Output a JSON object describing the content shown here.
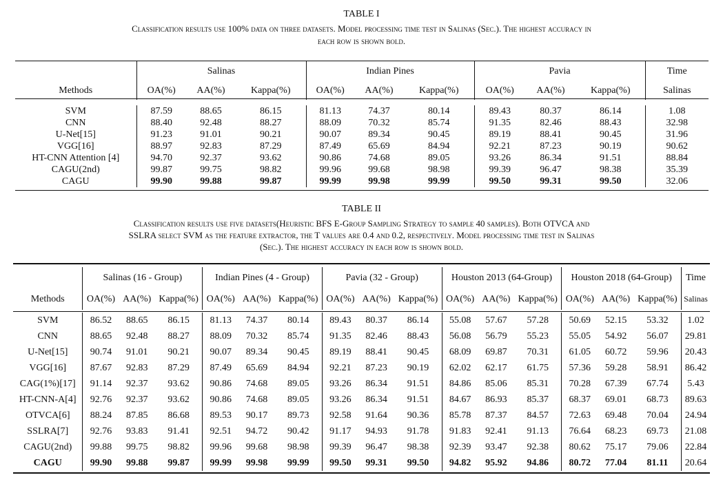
{
  "table1": {
    "name": "TABLE I",
    "caption_lines": [
      "Classification results use 100% data on three datasets. Model processing time test in Salinas (Sec.). The highest accuracy in",
      "each row is shown bold."
    ],
    "groups": [
      "Salinas",
      "Indian Pines",
      "Pavia",
      "Time"
    ],
    "columns": [
      "Methods",
      "OA(%)",
      "AA(%)",
      "Kappa(%)",
      "OA(%)",
      "AA(%)",
      "Kappa(%)",
      "OA(%)",
      "AA(%)",
      "Kappa(%)",
      "Salinas"
    ],
    "rows": [
      [
        "SVM",
        "87.59",
        "88.65",
        "86.15",
        "81.13",
        "74.37",
        "80.14",
        "89.43",
        "80.37",
        "86.14",
        "1.08"
      ],
      [
        "CNN",
        "88.40",
        "92.48",
        "88.27",
        "88.09",
        "70.32",
        "85.74",
        "91.35",
        "82.46",
        "88.43",
        "32.98"
      ],
      [
        "U-Net[15]",
        "91.23",
        "91.01",
        "90.21",
        "90.07",
        "89.34",
        "90.45",
        "89.19",
        "88.41",
        "90.45",
        "31.96"
      ],
      [
        "VGG[16]",
        "88.97",
        "92.83",
        "87.29",
        "87.49",
        "65.69",
        "84.94",
        "92.21",
        "87.23",
        "90.19",
        "90.62"
      ],
      [
        "HT-CNN Attention [4]",
        "94.70",
        "92.37",
        "93.62",
        "90.86",
        "74.68",
        "89.05",
        "93.26",
        "86.34",
        "91.51",
        "88.84"
      ],
      [
        "CAGU(2nd)",
        "99.87",
        "99.75",
        "98.82",
        "99.96",
        "99.68",
        "98.98",
        "99.39",
        "96.47",
        "98.38",
        "35.39"
      ],
      [
        "CAGU",
        "99.90",
        "99.88",
        "99.87",
        "99.99",
        "99.98",
        "99.99",
        "99.50",
        "99.31",
        "99.50",
        "32.06"
      ]
    ]
  },
  "table2": {
    "name": "TABLE II",
    "caption_lines": [
      "Classification results use five datasets(Heuristic BFS E-Group Sampling Strategy to sample 40 samples). Both OTVCA and",
      "SSLRA select SVM as the feature extractor, the T values are 0.4 and 0.2, respectively. Model processing time test in Salinas",
      "(Sec.). The highest accuracy in each row is shown bold."
    ],
    "groups": [
      "Salinas (16 - Group)",
      "Indian Pines (4 - Group)",
      "Pavia (32 - Group)",
      "Houston 2013 (64-Group)",
      "Houston 2018 (64-Group)",
      "Time"
    ],
    "columns": [
      "Methods",
      "OA(%)",
      "AA(%)",
      "Kappa(%)",
      "OA(%)",
      "AA(%)",
      "Kappa(%)",
      "OA(%)",
      "AA(%)",
      "Kappa(%)",
      "OA(%)",
      "AA(%)",
      "Kappa(%)",
      "OA(%)",
      "AA(%)",
      "Kappa(%)",
      "Salinas"
    ],
    "rows": [
      [
        "SVM",
        "86.52",
        "88.65",
        "86.15",
        "81.13",
        "74.37",
        "80.14",
        "89.43",
        "80.37",
        "86.14",
        "55.08",
        "57.67",
        "57.28",
        "50.69",
        "52.15",
        "53.32",
        "1.02"
      ],
      [
        "CNN",
        "88.65",
        "92.48",
        "88.27",
        "88.09",
        "70.32",
        "85.74",
        "91.35",
        "82.46",
        "88.43",
        "56.08",
        "56.79",
        "55.23",
        "55.05",
        "54.92",
        "56.07",
        "29.81"
      ],
      [
        "U-Net[15]",
        "90.74",
        "91.01",
        "90.21",
        "90.07",
        "89.34",
        "90.45",
        "89.19",
        "88.41",
        "90.45",
        "68.09",
        "69.87",
        "70.31",
        "61.05",
        "60.72",
        "59.96",
        "20.43"
      ],
      [
        "VGG[16]",
        "87.67",
        "92.83",
        "87.29",
        "87.49",
        "65.69",
        "84.94",
        "92.21",
        "87.23",
        "90.19",
        "62.02",
        "62.17",
        "61.75",
        "57.36",
        "59.28",
        "58.91",
        "86.42"
      ],
      [
        "CAG(1%)[17]",
        "91.14",
        "92.37",
        "93.62",
        "90.86",
        "74.68",
        "89.05",
        "93.26",
        "86.34",
        "91.51",
        "84.86",
        "85.06",
        "85.31",
        "70.28",
        "67.39",
        "67.74",
        "5.43"
      ],
      [
        "HT-CNN-A[4]",
        "92.76",
        "92.37",
        "93.62",
        "90.86",
        "74.68",
        "89.05",
        "93.26",
        "86.34",
        "91.51",
        "84.67",
        "86.93",
        "85.37",
        "68.37",
        "69.01",
        "68.73",
        "89.63"
      ],
      [
        "OTVCA[6]",
        "88.24",
        "87.85",
        "86.68",
        "89.53",
        "90.17",
        "89.73",
        "92.58",
        "91.64",
        "90.36",
        "85.78",
        "87.37",
        "84.57",
        "72.63",
        "69.48",
        "70.04",
        "24.94"
      ],
      [
        "SSLRA[7]",
        "92.76",
        "93.83",
        "91.41",
        "92.51",
        "94.72",
        "90.42",
        "91.17",
        "94.93",
        "91.78",
        "91.83",
        "92.41",
        "91.13",
        "76.64",
        "68.23",
        "69.73",
        "21.08"
      ],
      [
        "CAGU(2nd)",
        "99.88",
        "99.75",
        "98.82",
        "99.96",
        "99.68",
        "98.98",
        "99.39",
        "96.47",
        "98.38",
        "92.39",
        "93.47",
        "92.38",
        "80.62",
        "75.17",
        "79.06",
        "22.84"
      ],
      [
        "CAGU",
        "99.90",
        "99.88",
        "99.87",
        "99.99",
        "99.98",
        "99.99",
        "99.50",
        "99.31",
        "99.50",
        "94.82",
        "95.92",
        "94.86",
        "80.72",
        "77.04",
        "81.11",
        "20.64"
      ]
    ]
  }
}
